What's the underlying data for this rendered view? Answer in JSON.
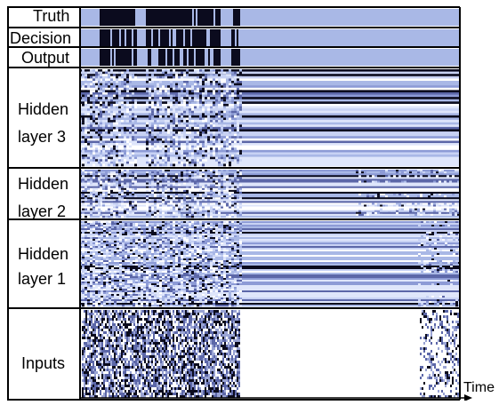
{
  "rows": [
    {
      "key": "truth",
      "label": "Truth"
    },
    {
      "key": "decision",
      "label": "Decision"
    },
    {
      "key": "output",
      "label": "Output"
    },
    {
      "key": "hidden3",
      "label_lines": [
        "Hidden",
        "layer 3"
      ]
    },
    {
      "key": "hidden2",
      "label_lines": [
        "Hidden",
        "layer 2"
      ]
    },
    {
      "key": "hidden1",
      "label_lines": [
        "Hidden",
        "layer 1"
      ]
    },
    {
      "key": "inputs",
      "label": "Inputs"
    }
  ],
  "time_axis_label": "Time",
  "colors": {
    "background": "#a9b8e6",
    "dark": "#0b0b1e",
    "mid": "#5c67a8",
    "light": "#dfe6fb",
    "frame": "#000000"
  }
}
